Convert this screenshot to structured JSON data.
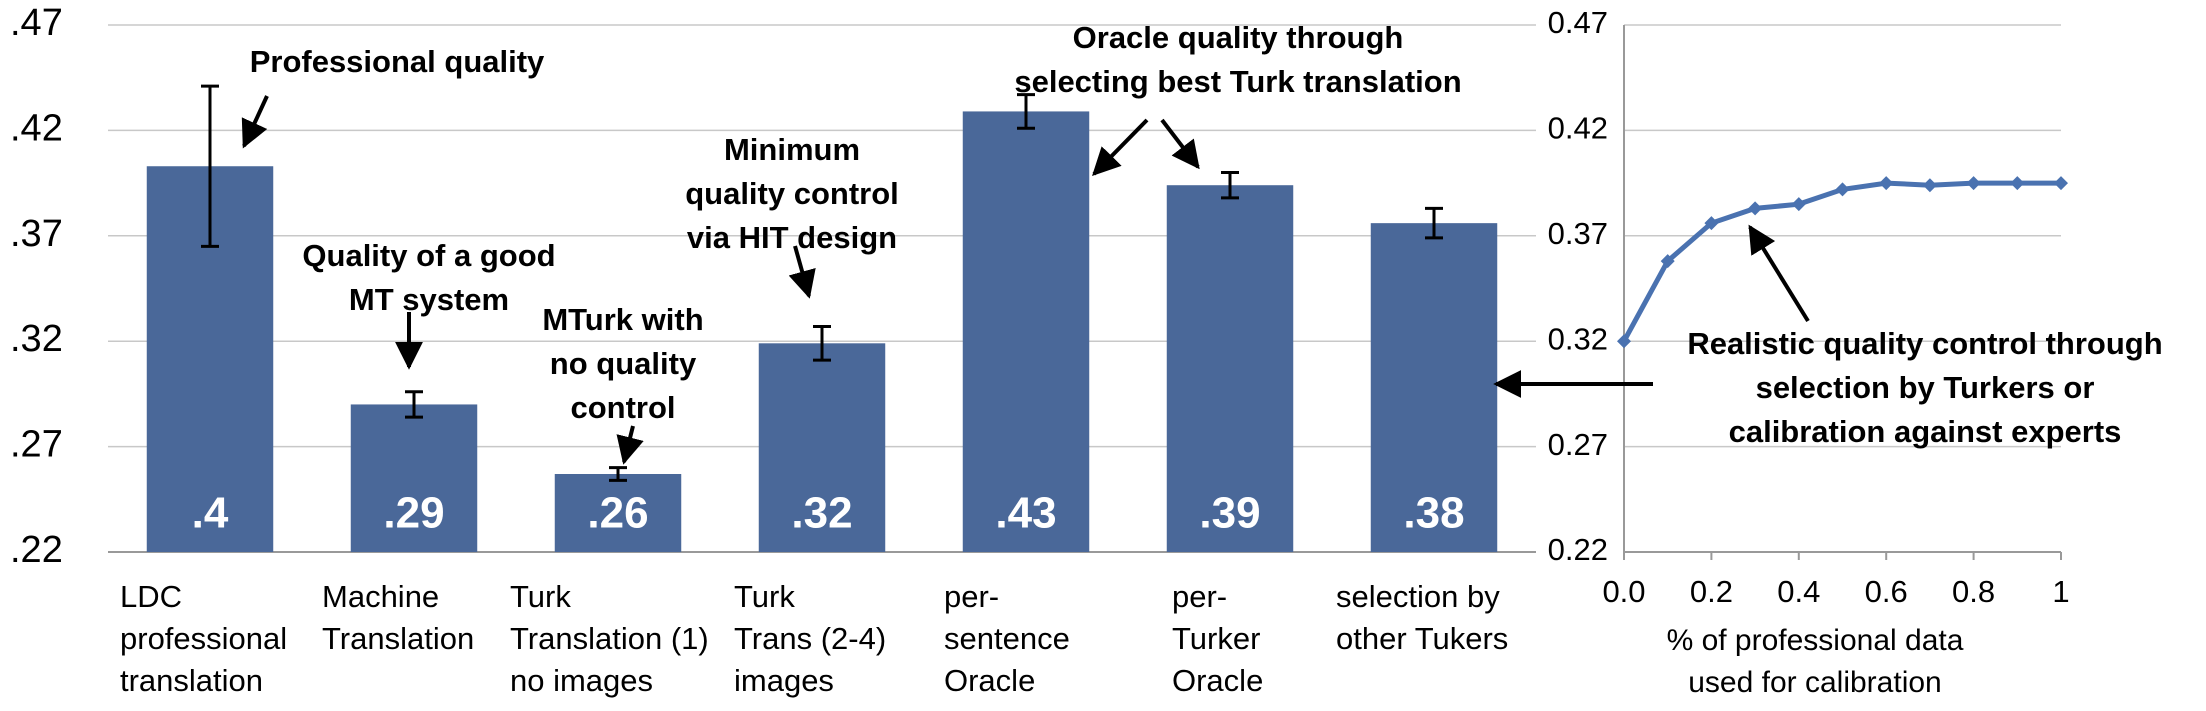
{
  "chart_data": [
    {
      "type": "bar",
      "categories": [
        "LDC\nprofessional\ntranslation",
        "Machine\nTranslation",
        "Turk\nTranslation (1)\nno images",
        "Turk\nTrans (2-4)\nimages",
        "per-\nsentence\nOracle",
        "per-\nTurker\nOracle",
        "selection by\nother Tukers"
      ],
      "values": [
        0.403,
        0.29,
        0.257,
        0.319,
        0.429,
        0.394,
        0.376
      ],
      "errors": [
        0.038,
        0.006,
        0.003,
        0.008,
        0.008,
        0.006,
        0.007
      ],
      "value_labels": [
        ".4",
        ".29",
        ".26",
        ".32",
        ".43",
        ".39",
        ".38"
      ],
      "color": "#4a6899",
      "ylim": [
        0.22,
        0.47
      ],
      "yticks": [
        {
          "value": 0.22,
          "label": ".22"
        },
        {
          "value": 0.27,
          "label": ".27"
        },
        {
          "value": 0.32,
          "label": ".32"
        },
        {
          "value": 0.37,
          "label": ".37"
        },
        {
          "value": 0.42,
          "label": ".42"
        },
        {
          "value": 0.47,
          "label": ".47"
        }
      ],
      "grid": true,
      "annotations": [
        "Professional quality",
        "Quality of a good\nMT system",
        "MTurk with\nno quality\ncontrol",
        "Minimum\nquality control\nvia HIT design",
        "Oracle quality through\nselecting best Turk translation"
      ]
    },
    {
      "type": "line",
      "x": [
        0,
        0.1,
        0.2,
        0.3,
        0.4,
        0.5,
        0.6,
        0.7,
        0.8,
        0.9,
        1
      ],
      "values": [
        0.32,
        0.358,
        0.376,
        0.383,
        0.385,
        0.392,
        0.395,
        0.394,
        0.395,
        0.395,
        0.395
      ],
      "color": "#4a72b0",
      "xlim": [
        0,
        1
      ],
      "xticks": [
        {
          "value": 0,
          "label": "0.0"
        },
        0.2,
        0.4,
        0.6,
        0.8,
        1
      ],
      "ylim": [
        0.22,
        0.47
      ],
      "yticks": [
        0.22,
        0.27,
        0.32,
        0.37,
        0.42,
        0.47
      ],
      "grid": true,
      "xlabel": "% of professional data\nused for calibration",
      "annotations": [
        "Realistic quality control through\nselection by Turkers or\ncalibration against experts"
      ]
    }
  ]
}
